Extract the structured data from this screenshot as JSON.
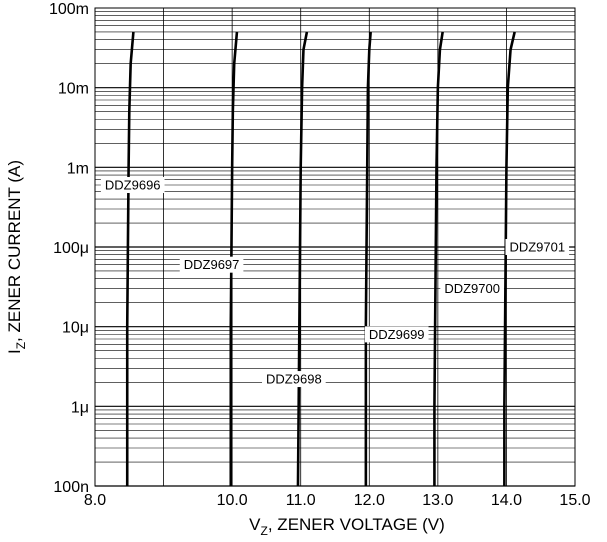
{
  "chart_data": {
    "type": "line",
    "xlabel_prefix": "V",
    "xlabel_sub": "Z",
    "xlabel_rest": ", ZENER VOLTAGE (V)",
    "ylabel_prefix": "I",
    "ylabel_sub": "Z",
    "ylabel_rest": ", ZENER CURRENT (A)",
    "xlim": [
      8.0,
      15.0
    ],
    "ylim": [
      1e-07,
      0.1
    ],
    "y_scale": "log",
    "grid": true,
    "x_ticks": [
      8.0,
      9.0,
      10.0,
      11.0,
      12.0,
      13.0,
      14.0,
      15.0
    ],
    "x_tick_labels": [
      "8.0",
      "10.0",
      "11.0",
      "12.0",
      "13.0",
      "14.0",
      "15.0"
    ],
    "x_tick_label_values": [
      8.0,
      10.0,
      11.0,
      12.0,
      13.0,
      14.0,
      15.0
    ],
    "y_tick_values": [
      0.1,
      0.01,
      0.001,
      0.0001,
      1e-05,
      1e-06,
      1e-07
    ],
    "y_tick_labels": [
      "100m",
      "10m",
      "1m",
      "100μ",
      "10μ",
      "1μ",
      "100n"
    ],
    "series": [
      {
        "name": "DDZ9696",
        "label_at": [
          8.55,
          0.0006
        ],
        "points": [
          [
            8.47,
            1e-07
          ],
          [
            8.47,
            1e-06
          ],
          [
            8.47,
            1e-05
          ],
          [
            8.48,
            0.0001
          ],
          [
            8.49,
            0.001
          ],
          [
            8.5,
            0.005
          ],
          [
            8.52,
            0.02
          ],
          [
            8.56,
            0.05
          ]
        ]
      },
      {
        "name": "DDZ9697",
        "label_at": [
          9.7,
          6e-05
        ],
        "points": [
          [
            9.98,
            1e-07
          ],
          [
            9.98,
            1e-06
          ],
          [
            9.98,
            1e-05
          ],
          [
            9.99,
            0.0001
          ],
          [
            10.0,
            0.001
          ],
          [
            10.01,
            0.005
          ],
          [
            10.03,
            0.02
          ],
          [
            10.07,
            0.05
          ]
        ]
      },
      {
        "name": "DDZ9698",
        "label_at": [
          10.9,
          2.2e-06
        ],
        "points": [
          [
            10.96,
            1e-07
          ],
          [
            10.97,
            1e-06
          ],
          [
            10.98,
            1e-05
          ],
          [
            10.99,
            0.0001
          ],
          [
            11.0,
            0.001
          ],
          [
            11.02,
            0.01
          ],
          [
            11.04,
            0.03
          ],
          [
            11.09,
            0.05
          ]
        ]
      },
      {
        "name": "DDZ9699",
        "label_at": [
          12.4,
          8e-06
        ],
        "points": [
          [
            11.95,
            1e-07
          ],
          [
            11.95,
            1e-06
          ],
          [
            11.95,
            1e-05
          ],
          [
            11.96,
            0.0001
          ],
          [
            11.97,
            0.001
          ],
          [
            11.98,
            0.01
          ],
          [
            12.0,
            0.03
          ],
          [
            12.02,
            0.05
          ]
        ]
      },
      {
        "name": "DDZ9700",
        "label_at": [
          13.5,
          3e-05
        ],
        "points": [
          [
            12.95,
            1e-07
          ],
          [
            12.95,
            1e-06
          ],
          [
            12.96,
            1e-05
          ],
          [
            12.97,
            0.0001
          ],
          [
            12.98,
            0.001
          ],
          [
            13.0,
            0.01
          ],
          [
            13.03,
            0.03
          ],
          [
            13.07,
            0.05
          ]
        ]
      },
      {
        "name": "DDZ9701",
        "label_at": [
          14.45,
          0.0001
        ],
        "points": [
          [
            13.97,
            1e-07
          ],
          [
            13.97,
            1e-06
          ],
          [
            13.98,
            1e-05
          ],
          [
            13.99,
            0.0001
          ],
          [
            14.0,
            0.001
          ],
          [
            14.02,
            0.01
          ],
          [
            14.06,
            0.03
          ],
          [
            14.12,
            0.05
          ]
        ]
      }
    ]
  }
}
